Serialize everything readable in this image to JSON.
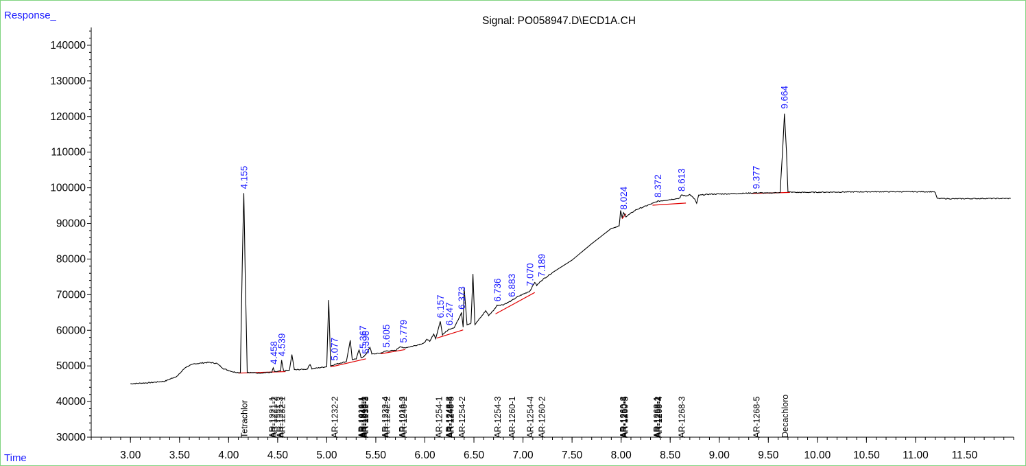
{
  "chart_data": {
    "type": "line",
    "title": "Signal: PO058947.D\\ECD1A.CH",
    "ylabel": "Response_",
    "xlabel": "Time",
    "xlim": [
      2.6,
      12.0
    ],
    "ylim": [
      30000,
      145000
    ],
    "x_ticks": [
      "3.00",
      "3.50",
      "4.00",
      "4.50",
      "5.00",
      "5.50",
      "6.00",
      "6.50",
      "7.00",
      "7.50",
      "8.00",
      "8.50",
      "9.00",
      "9.50",
      "10.00",
      "10.50",
      "11.00",
      "11.50"
    ],
    "y_ticks": [
      "30000",
      "40000",
      "50000",
      "60000",
      "70000",
      "80000",
      "90000",
      "100000",
      "110000",
      "120000",
      "130000",
      "140000"
    ],
    "series": [
      {
        "color": "#000000",
        "points": [
          [
            3.0,
            45000
          ],
          [
            3.2,
            45300
          ],
          [
            3.35,
            45700
          ],
          [
            3.48,
            47200
          ],
          [
            3.56,
            49600
          ],
          [
            3.65,
            50600
          ],
          [
            3.8,
            51000
          ],
          [
            3.88,
            50700
          ],
          [
            3.95,
            49200
          ],
          [
            4.05,
            48300
          ],
          [
            4.12,
            48100
          ],
          [
            4.14,
            80000
          ],
          [
            4.155,
            98500
          ],
          [
            4.17,
            75000
          ],
          [
            4.19,
            48200
          ],
          [
            4.3,
            48000
          ],
          [
            4.44,
            48200
          ],
          [
            4.455,
            49400
          ],
          [
            4.47,
            48300
          ],
          [
            4.53,
            48600
          ],
          [
            4.54,
            51500
          ],
          [
            4.56,
            48600
          ],
          [
            4.62,
            48800
          ],
          [
            4.645,
            53200
          ],
          [
            4.67,
            48900
          ],
          [
            4.8,
            49100
          ],
          [
            4.83,
            50500
          ],
          [
            4.85,
            49200
          ],
          [
            4.95,
            49600
          ],
          [
            5.0,
            49800
          ],
          [
            5.02,
            68500
          ],
          [
            5.04,
            50000
          ],
          [
            5.077,
            50400
          ],
          [
            5.15,
            50900
          ],
          [
            5.2,
            51200
          ],
          [
            5.24,
            57200
          ],
          [
            5.26,
            51800
          ],
          [
            5.3,
            52000
          ],
          [
            5.33,
            54500
          ],
          [
            5.35,
            52200
          ],
          [
            5.4,
            53200
          ],
          [
            5.44,
            55300
          ],
          [
            5.46,
            53300
          ],
          [
            5.55,
            53600
          ],
          [
            5.605,
            54200
          ],
          [
            5.7,
            54300
          ],
          [
            5.75,
            55500
          ],
          [
            5.78,
            55000
          ],
          [
            5.9,
            55700
          ],
          [
            6.0,
            56500
          ],
          [
            6.02,
            57600
          ],
          [
            6.05,
            56800
          ],
          [
            6.09,
            59000
          ],
          [
            6.11,
            57600
          ],
          [
            6.157,
            62500
          ],
          [
            6.18,
            58800
          ],
          [
            6.247,
            60300
          ],
          [
            6.3,
            60800
          ],
          [
            6.34,
            63000
          ],
          [
            6.373,
            65000
          ],
          [
            6.39,
            60900
          ],
          [
            6.4,
            72000
          ],
          [
            6.43,
            61600
          ],
          [
            6.47,
            62000
          ],
          [
            6.49,
            75800
          ],
          [
            6.51,
            61600
          ],
          [
            6.58,
            64000
          ],
          [
            6.62,
            65500
          ],
          [
            6.65,
            64200
          ],
          [
            6.7,
            65600
          ],
          [
            6.736,
            67000
          ],
          [
            6.8,
            67200
          ],
          [
            6.883,
            68300
          ],
          [
            6.95,
            69500
          ],
          [
            7.07,
            71000
          ],
          [
            7.12,
            73500
          ],
          [
            7.14,
            72600
          ],
          [
            7.189,
            74000
          ],
          [
            7.3,
            76200
          ],
          [
            7.5,
            79700
          ],
          [
            7.7,
            84300
          ],
          [
            7.9,
            88600
          ],
          [
            7.98,
            89300
          ],
          [
            7.995,
            93600
          ],
          [
            8.01,
            91600
          ],
          [
            8.024,
            93000
          ],
          [
            8.05,
            91900
          ],
          [
            8.15,
            93800
          ],
          [
            8.3,
            95400
          ],
          [
            8.372,
            96200
          ],
          [
            8.45,
            96500
          ],
          [
            8.6,
            97100
          ],
          [
            8.613,
            98000
          ],
          [
            8.66,
            97700
          ],
          [
            8.7,
            98100
          ],
          [
            8.75,
            96800
          ],
          [
            8.77,
            95600
          ],
          [
            8.79,
            97900
          ],
          [
            8.9,
            98200
          ],
          [
            9.1,
            98300
          ],
          [
            9.3,
            98500
          ],
          [
            9.377,
            98600
          ],
          [
            9.5,
            98500
          ],
          [
            9.62,
            98700
          ],
          [
            9.645,
            110000
          ],
          [
            9.664,
            120800
          ],
          [
            9.685,
            110000
          ],
          [
            9.7,
            98800
          ],
          [
            9.8,
            98700
          ],
          [
            10.2,
            98800
          ],
          [
            10.6,
            98900
          ],
          [
            10.9,
            98900
          ],
          [
            11.18,
            98900
          ],
          [
            11.2,
            98700
          ],
          [
            11.22,
            97000
          ],
          [
            11.4,
            96900
          ],
          [
            11.7,
            97000
          ],
          [
            11.97,
            97000
          ]
        ]
      }
    ],
    "baselines": [
      [
        [
          4.1,
          48000
        ],
        [
          4.58,
          48400
        ]
      ],
      [
        [
          5.04,
          49700
        ],
        [
          5.4,
          52000
        ]
      ],
      [
        [
          5.55,
          53400
        ],
        [
          5.8,
          54600
        ]
      ],
      [
        [
          6.12,
          57800
        ],
        [
          6.39,
          60100
        ]
      ],
      [
        [
          6.72,
          64600
        ],
        [
          7.12,
          70600
        ]
      ],
      [
        [
          8.01,
          91300
        ],
        [
          8.05,
          92700
        ]
      ],
      [
        [
          8.32,
          95100
        ],
        [
          8.66,
          95700
        ]
      ],
      [
        [
          9.33,
          98400
        ],
        [
          9.72,
          98700
        ]
      ]
    ],
    "peak_labels": [
      {
        "x": 4.155,
        "y": 98500,
        "text": "4.155"
      },
      {
        "x": 4.458,
        "y": 49300,
        "text": "4.458"
      },
      {
        "x": 4.539,
        "y": 51500,
        "text": "4.539"
      },
      {
        "x": 5.077,
        "y": 50300,
        "text": "5.077"
      },
      {
        "x": 5.367,
        "y": 53700,
        "text": "5.367"
      },
      {
        "x": 5.396,
        "y": 52200,
        "text": "5.396"
      },
      {
        "x": 5.605,
        "y": 54000,
        "text": "5.605"
      },
      {
        "x": 5.779,
        "y": 55300,
        "text": "5.779"
      },
      {
        "x": 6.157,
        "y": 62300,
        "text": "6.157"
      },
      {
        "x": 6.247,
        "y": 60200,
        "text": "6.247"
      },
      {
        "x": 6.373,
        "y": 64700,
        "text": "6.373"
      },
      {
        "x": 6.736,
        "y": 66900,
        "text": "6.736"
      },
      {
        "x": 6.883,
        "y": 68200,
        "text": "6.883"
      },
      {
        "x": 7.07,
        "y": 71200,
        "text": "7.070"
      },
      {
        "x": 7.189,
        "y": 73800,
        "text": "7.189"
      },
      {
        "x": 8.024,
        "y": 92700,
        "text": "8.024"
      },
      {
        "x": 8.372,
        "y": 96100,
        "text": "8.372"
      },
      {
        "x": 8.613,
        "y": 97800,
        "text": "8.613"
      },
      {
        "x": 9.377,
        "y": 98500,
        "text": "9.377"
      },
      {
        "x": 9.664,
        "y": 121000,
        "text": "9.664"
      }
    ],
    "compound_labels": [
      {
        "x": 4.155,
        "text": "Tetrachlor"
      },
      {
        "x": 4.44,
        "text": "AR-1221-1"
      },
      {
        "x": 4.46,
        "text": "AR-1221-2"
      },
      {
        "x": 4.52,
        "text": "AR-1221-3"
      },
      {
        "x": 4.54,
        "text": "AR-1232-1"
      },
      {
        "x": 5.077,
        "text": "AR-1232-2"
      },
      {
        "x": 5.35,
        "text": "AR-1016-1"
      },
      {
        "x": 5.36,
        "text": "AR-1242-1"
      },
      {
        "x": 5.37,
        "text": "AR-1248-1"
      },
      {
        "x": 5.38,
        "text": "AR-1016-2"
      },
      {
        "x": 5.39,
        "text": "AR-1232-3"
      },
      {
        "x": 5.59,
        "text": "AR-1232-4"
      },
      {
        "x": 5.61,
        "text": "AR-1242-2"
      },
      {
        "x": 5.765,
        "text": "AR-1016-3"
      },
      {
        "x": 5.78,
        "text": "AR-1248-2"
      },
      {
        "x": 6.14,
        "text": "AR-1254-1"
      },
      {
        "x": 6.24,
        "text": "AR-1248-3"
      },
      {
        "x": 6.25,
        "text": "AR-1248-4"
      },
      {
        "x": 6.26,
        "text": "AR-1248-5"
      },
      {
        "x": 6.373,
        "text": "AR-1254-2"
      },
      {
        "x": 6.736,
        "text": "AR-1254-3"
      },
      {
        "x": 6.883,
        "text": "AR-1260-1"
      },
      {
        "x": 7.07,
        "text": "AR-1254-4"
      },
      {
        "x": 7.189,
        "text": "AR-1260-2"
      },
      {
        "x": 8.015,
        "text": "AR-1260-3"
      },
      {
        "x": 8.025,
        "text": "AR-1260-4"
      },
      {
        "x": 8.035,
        "text": "AR-1260-5"
      },
      {
        "x": 8.36,
        "text": "AR-1268-1"
      },
      {
        "x": 8.37,
        "text": "AR-1268-2"
      },
      {
        "x": 8.38,
        "text": "AR-1268-4"
      },
      {
        "x": 8.613,
        "text": "AR-1268-3"
      },
      {
        "x": 9.377,
        "text": "AR-1268-5"
      },
      {
        "x": 9.664,
        "text": "Decachloro"
      }
    ],
    "colors": {
      "trace": "#000000",
      "baseline": "#e00000",
      "peak_label": "#1a1aff",
      "frame": "#7fd37f"
    }
  }
}
